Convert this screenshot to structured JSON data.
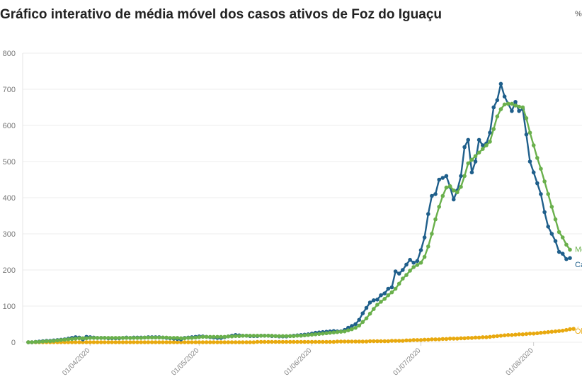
{
  "header": {
    "title": "Gráfico interativo de média móvel dos casos ativos de Foz do Iguaçu",
    "corner_icon": "share-icon"
  },
  "chart_data": {
    "type": "line",
    "title": "Gráfico interativo de média móvel dos casos ativos de Foz do Iguaçu",
    "ylim": [
      0,
      800
    ],
    "y_ticks": [
      0,
      100,
      200,
      300,
      400,
      500,
      600,
      700,
      800
    ],
    "x_ticks": [
      "01/04/2020",
      "01/05/2020",
      "01/06/2020",
      "01/07/2020",
      "01/08/2020"
    ],
    "grid": true,
    "x_start_label": "2020-03-15",
    "series": [
      {
        "name": "Ca",
        "color": "#1f5f8b",
        "values": [
          0,
          0,
          1,
          2,
          3,
          4,
          4,
          5,
          6,
          7,
          8,
          10,
          12,
          14,
          13,
          8,
          15,
          14,
          13,
          12,
          12,
          12,
          11,
          11,
          11,
          11,
          12,
          13,
          12,
          13,
          13,
          13,
          13,
          14,
          14,
          14,
          14,
          13,
          12,
          11,
          10,
          9,
          8,
          12,
          13,
          14,
          15,
          16,
          16,
          15,
          14,
          13,
          12,
          12,
          14,
          16,
          18,
          20,
          19,
          18,
          18,
          17,
          17,
          17,
          18,
          18,
          18,
          17,
          17,
          16,
          16,
          16,
          17,
          18,
          19,
          20,
          21,
          22,
          24,
          26,
          27,
          28,
          29,
          30,
          31,
          30,
          30,
          34,
          40,
          45,
          50,
          62,
          80,
          95,
          110,
          116,
          118,
          130,
          135,
          148,
          152,
          196,
          190,
          200,
          215,
          228,
          220,
          225,
          255,
          290,
          355,
          405,
          410,
          450,
          455,
          460,
          430,
          395,
          420,
          460,
          540,
          560,
          470,
          500,
          560,
          545,
          550,
          580,
          650,
          670,
          715,
          680,
          660,
          640,
          665,
          640,
          645,
          575,
          500,
          470,
          440,
          410,
          360,
          320,
          300,
          280,
          250,
          245,
          230,
          233
        ]
      },
      {
        "name": "Mé",
        "color": "#6ab04c",
        "values": [
          0,
          0,
          1,
          1,
          2,
          3,
          3,
          4,
          5,
          6,
          7,
          8,
          9,
          10,
          11,
          11,
          11,
          12,
          12,
          12,
          12,
          12,
          12,
          12,
          12,
          12,
          12,
          12,
          12,
          12,
          12,
          12,
          13,
          13,
          13,
          13,
          13,
          13,
          13,
          12,
          12,
          12,
          11,
          11,
          12,
          12,
          13,
          14,
          15,
          15,
          15,
          15,
          15,
          15,
          15,
          16,
          16,
          17,
          17,
          18,
          18,
          18,
          18,
          18,
          18,
          18,
          18,
          18,
          17,
          17,
          17,
          17,
          17,
          17,
          18,
          18,
          19,
          20,
          21,
          22,
          23,
          24,
          25,
          26,
          27,
          28,
          29,
          30,
          33,
          36,
          40,
          46,
          56,
          66,
          79,
          92,
          104,
          112,
          120,
          130,
          138,
          148,
          162,
          176,
          186,
          198,
          208,
          214,
          220,
          236,
          265,
          300,
          340,
          375,
          405,
          428,
          432,
          420,
          415,
          430,
          460,
          495,
          505,
          515,
          525,
          535,
          545,
          555,
          590,
          625,
          645,
          658,
          660,
          660,
          655,
          652,
          650,
          620,
          580,
          545,
          510,
          480,
          445,
          410,
          375,
          340,
          305,
          290,
          270,
          256
        ]
      },
      {
        "name": "Ób",
        "color": "#e8a90f",
        "values": [
          0,
          0,
          0,
          0,
          0,
          0,
          0,
          0,
          0,
          0,
          0,
          0,
          0,
          0,
          0,
          0,
          0,
          0,
          0,
          0,
          0,
          0,
          0,
          0,
          0,
          0,
          0,
          0,
          0,
          0,
          0,
          0,
          0,
          0,
          0,
          0,
          0,
          0,
          0,
          0,
          0,
          0,
          0,
          0,
          0,
          0,
          0,
          0,
          0,
          0,
          0,
          0,
          0,
          0,
          0,
          0,
          0,
          0,
          0,
          0,
          0,
          0,
          0,
          1,
          1,
          1,
          1,
          1,
          1,
          1,
          1,
          1,
          1,
          1,
          1,
          1,
          1,
          1,
          1,
          1,
          1,
          1,
          1,
          1,
          1,
          2,
          2,
          2,
          2,
          2,
          2,
          2,
          2,
          2,
          3,
          3,
          3,
          3,
          3,
          3,
          4,
          4,
          4,
          4,
          5,
          5,
          6,
          6,
          6,
          7,
          7,
          8,
          8,
          8,
          9,
          9,
          10,
          10,
          10,
          11,
          11,
          12,
          12,
          13,
          13,
          14,
          14,
          15,
          16,
          17,
          18,
          19,
          20,
          20,
          21,
          22,
          22,
          23,
          24,
          24,
          25,
          26,
          27,
          28,
          29,
          30,
          31,
          32,
          34,
          36,
          37
        ]
      }
    ]
  }
}
